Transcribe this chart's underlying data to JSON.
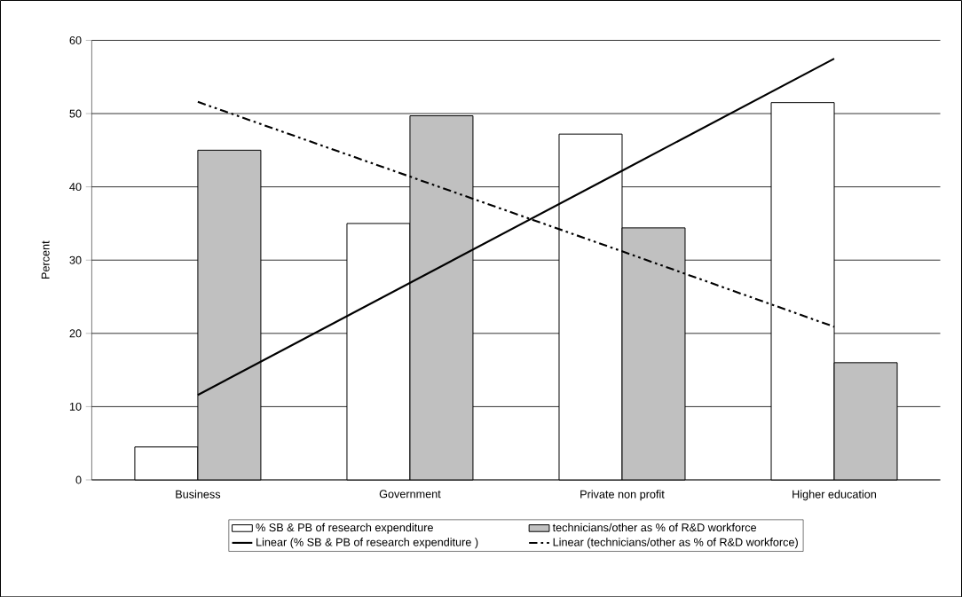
{
  "chart_data": {
    "type": "bar",
    "ylabel": "Percent",
    "categories": [
      "Business",
      "Government",
      "Private non profit",
      "Higher education"
    ],
    "series": [
      {
        "name": "% SB & PB of research expenditure",
        "color": "#ffffff",
        "values": [
          4.5,
          35.0,
          47.2,
          51.5
        ]
      },
      {
        "name": "technicians/other as % of R&D workforce",
        "color": "#c0c0c0",
        "values": [
          45.0,
          49.7,
          34.4,
          16.0
        ]
      },
      {
        "name": "Linear (% SB & PB of research expenditure )",
        "type": "line",
        "line_style": "solid",
        "color": "#000000",
        "values": [
          11.6,
          26.9,
          42.2,
          57.5
        ]
      },
      {
        "name": "Linear (technicians/other as % of R&D workforce)",
        "type": "line",
        "line_style": "dashed",
        "color": "#000000",
        "values": [
          51.6,
          41.4,
          31.2,
          20.9
        ]
      }
    ],
    "ylim": [
      0,
      60
    ],
    "yticks": [
      0,
      10,
      20,
      30,
      40,
      50,
      60
    ],
    "grid": "y",
    "legend": "bottom",
    "marker": "none"
  }
}
